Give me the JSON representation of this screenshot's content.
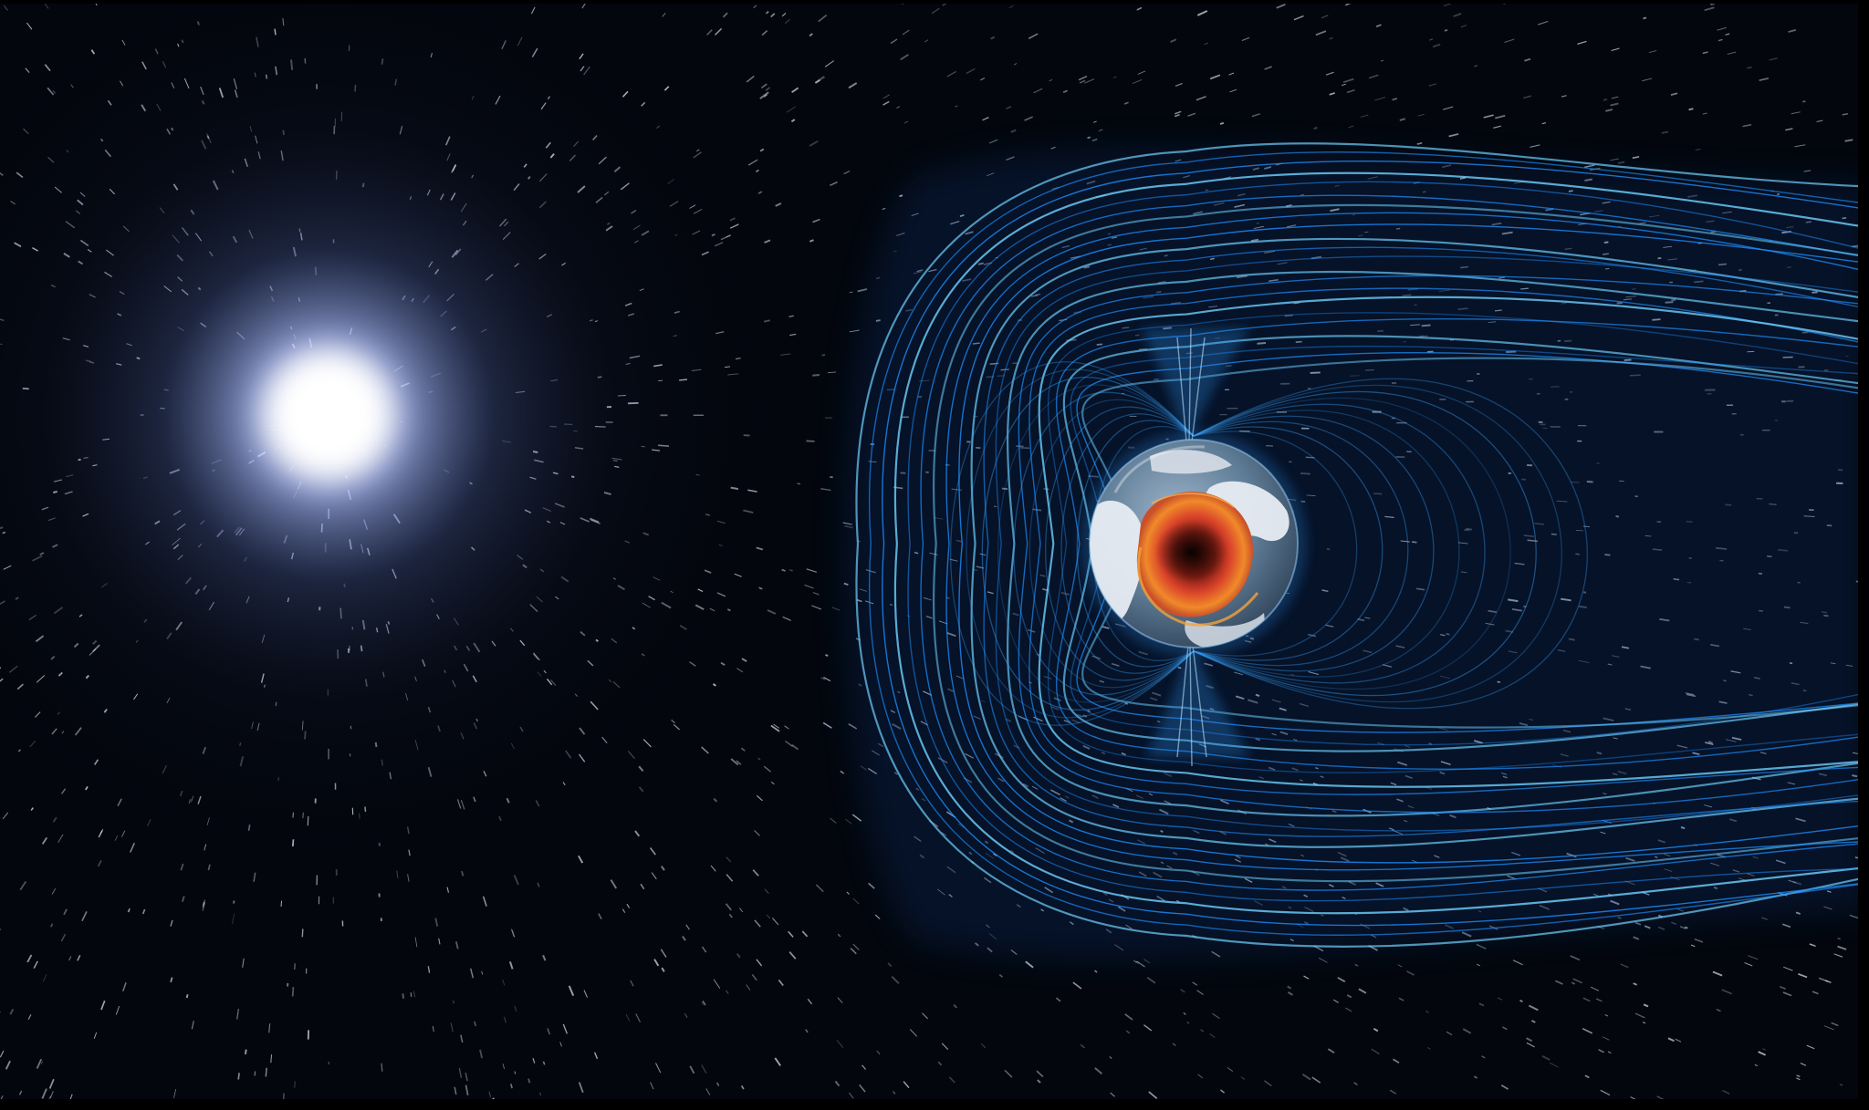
{
  "image": {
    "subject": "solar-wind-and-earth-magnetosphere",
    "elements": [
      "sun-glow",
      "solar-wind-streaks",
      "magnetosphere-field-lines",
      "earth-cutaway",
      "molten-core"
    ]
  },
  "colors": {
    "space": "#03060d",
    "sun_core": "#ffffff",
    "sun_halo": "#9fb7ff",
    "field_line": "#1e90ff",
    "field_line_bright": "#6fd2ff",
    "field_glow": "#0a3d8a",
    "earth_land": "#e7ecf2",
    "earth_ocean": "#6f8fa8",
    "core_red": "#d8412a",
    "core_orange": "#f08a2a",
    "core_dark": "#5a130d"
  }
}
